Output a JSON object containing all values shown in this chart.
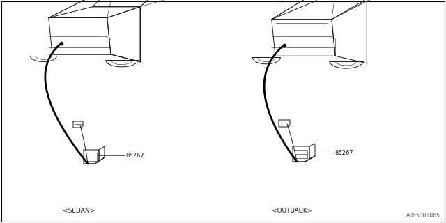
{
  "bg_color": "#ffffff",
  "border_color": "#000000",
  "diagram_number": "A865001065",
  "left_label": "<SEDAN>",
  "right_label": "<OUTBACK>",
  "part_number_left": "86267",
  "part_number_right": "86267",
  "line_color": "#1a1a1a",
  "lw_main": 0.7,
  "lw_thin": 0.4,
  "font_size_label": 6.5,
  "font_size_partnum": 6,
  "font_size_diag": 5.5
}
